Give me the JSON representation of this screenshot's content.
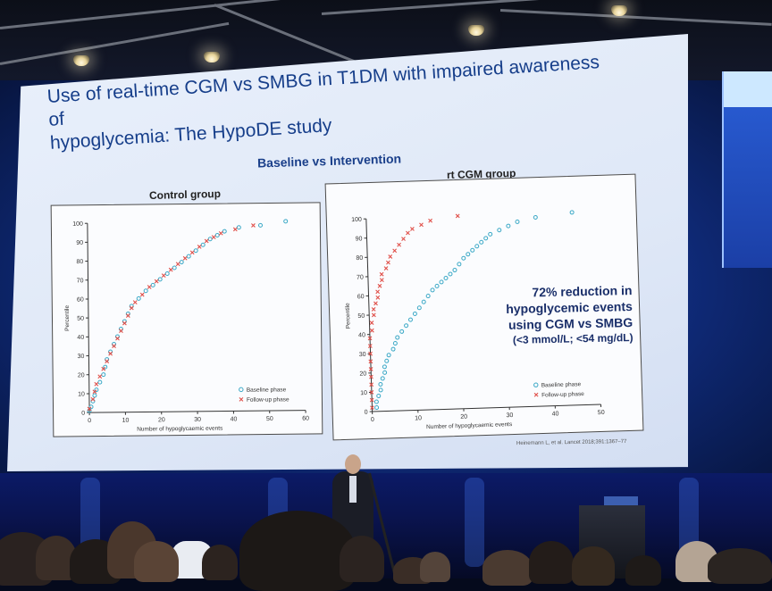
{
  "slide": {
    "title_line1": "Use of real-time CGM vs SMBG in T1DM with impaired awareness of",
    "title_line2": "hypoglycemia: The HypoDE study",
    "subheading": "Baseline vs Intervention",
    "callout_line1": "72% reduction in",
    "callout_line2": "hypoglycemic events",
    "callout_line3": "using CGM vs SMBG",
    "callout_line4": "(<3 mmol/L; <54 mg/dL)",
    "citation": "Heinemann L, et al. Lancet 2018;391:1367–77"
  },
  "colors": {
    "baseline": "#3aa8c6",
    "followup": "#e0504a",
    "title": "#163e8a"
  },
  "chart_data": [
    {
      "type": "scatter",
      "title": "Control group",
      "xlabel": "Number of hypoglycaemic events",
      "ylabel": "Percentile",
      "xlim": [
        0,
        60
      ],
      "ylim": [
        0,
        100
      ],
      "xticks": [
        "0",
        "10",
        "20",
        "30",
        "40",
        "50",
        "60"
      ],
      "yticks": [
        "0",
        "10",
        "20",
        "30",
        "40",
        "50",
        "60",
        "70",
        "80",
        "90",
        "100"
      ],
      "legend": [
        "Baseline phase",
        "Follow-up phase"
      ],
      "legend_position": "bottom-right",
      "series": [
        {
          "name": "Baseline phase",
          "marker": "circle",
          "points": [
            [
              0,
              1
            ],
            [
              0.5,
              3
            ],
            [
              1,
              6
            ],
            [
              1.5,
              9
            ],
            [
              2,
              12
            ],
            [
              3,
              16
            ],
            [
              4,
              20
            ],
            [
              4.5,
              24
            ],
            [
              5,
              28
            ],
            [
              6,
              32
            ],
            [
              7,
              36
            ],
            [
              8,
              40
            ],
            [
              9,
              44
            ],
            [
              10,
              48
            ],
            [
              11,
              52
            ],
            [
              12,
              56
            ],
            [
              14,
              60
            ],
            [
              16,
              64
            ],
            [
              18,
              67
            ],
            [
              20,
              70
            ],
            [
              22,
              73
            ],
            [
              24,
              76
            ],
            [
              26,
              79
            ],
            [
              28,
              82
            ],
            [
              30,
              85
            ],
            [
              32,
              88
            ],
            [
              34,
              91
            ],
            [
              36,
              93
            ],
            [
              38,
              95
            ],
            [
              42,
              97
            ],
            [
              48,
              98
            ],
            [
              55,
              100
            ]
          ]
        },
        {
          "name": "Follow-up phase",
          "marker": "cross",
          "points": [
            [
              0,
              2
            ],
            [
              1,
              7
            ],
            [
              1.5,
              11
            ],
            [
              2,
              15
            ],
            [
              3,
              19
            ],
            [
              4,
              23
            ],
            [
              5,
              27
            ],
            [
              6,
              31
            ],
            [
              7,
              35
            ],
            [
              8,
              39
            ],
            [
              9,
              43
            ],
            [
              10,
              47
            ],
            [
              11,
              51
            ],
            [
              12,
              55
            ],
            [
              13,
              58
            ],
            [
              15,
              62
            ],
            [
              17,
              66
            ],
            [
              19,
              69
            ],
            [
              21,
              72
            ],
            [
              23,
              75
            ],
            [
              25,
              78
            ],
            [
              27,
              81
            ],
            [
              29,
              84
            ],
            [
              31,
              87
            ],
            [
              33,
              90
            ],
            [
              35,
              92
            ],
            [
              37,
              94
            ],
            [
              41,
              96
            ],
            [
              46,
              98
            ]
          ]
        }
      ]
    },
    {
      "type": "scatter",
      "title": "rt CGM group",
      "xlabel": "Number of hypoglycaemic events",
      "ylabel": "Percentile",
      "xlim": [
        0,
        50
      ],
      "ylim": [
        0,
        100
      ],
      "xticks": [
        "0",
        "10",
        "20",
        "30",
        "40",
        "50"
      ],
      "yticks": [
        "0",
        "10",
        "20",
        "30",
        "40",
        "50",
        "60",
        "70",
        "80",
        "90",
        "100"
      ],
      "legend": [
        "Baseline phase",
        "Follow-up phase"
      ],
      "legend_position": "bottom-right",
      "series": [
        {
          "name": "Baseline phase",
          "marker": "circle",
          "points": [
            [
              1,
              2
            ],
            [
              1,
              5
            ],
            [
              1.5,
              8
            ],
            [
              2,
              11
            ],
            [
              2,
              14
            ],
            [
              2.5,
              17
            ],
            [
              3,
              20
            ],
            [
              3,
              23
            ],
            [
              3.5,
              26
            ],
            [
              4,
              29
            ],
            [
              5,
              32
            ],
            [
              5.5,
              35
            ],
            [
              6,
              38
            ],
            [
              7,
              41
            ],
            [
              8,
              44
            ],
            [
              9,
              47
            ],
            [
              10,
              50
            ],
            [
              11,
              53
            ],
            [
              12,
              56
            ],
            [
              13,
              59
            ],
            [
              14,
              62
            ],
            [
              15,
              64
            ],
            [
              16,
              66
            ],
            [
              17,
              68
            ],
            [
              18,
              70
            ],
            [
              19,
              72
            ],
            [
              20,
              75
            ],
            [
              21,
              78
            ],
            [
              22,
              80
            ],
            [
              23,
              82
            ],
            [
              24,
              84
            ],
            [
              25,
              86
            ],
            [
              26,
              88
            ],
            [
              27,
              90
            ],
            [
              29,
              92
            ],
            [
              31,
              94
            ],
            [
              33,
              96
            ],
            [
              37,
              98
            ],
            [
              45,
              100
            ]
          ]
        },
        {
          "name": "Follow-up phase",
          "marker": "cross",
          "points": [
            [
              0,
              2
            ],
            [
              0,
              6
            ],
            [
              0,
              10
            ],
            [
              0,
              14
            ],
            [
              0,
              18
            ],
            [
              0,
              22
            ],
            [
              0,
              26
            ],
            [
              0,
              30
            ],
            [
              0,
              34
            ],
            [
              0,
              38
            ],
            [
              0.5,
              42
            ],
            [
              0.5,
              46
            ],
            [
              1,
              50
            ],
            [
              1,
              53
            ],
            [
              1.5,
              56
            ],
            [
              2,
              59
            ],
            [
              2,
              62
            ],
            [
              2.5,
              65
            ],
            [
              3,
              68
            ],
            [
              3,
              71
            ],
            [
              4,
              74
            ],
            [
              4.5,
              77
            ],
            [
              5,
              80
            ],
            [
              6,
              83
            ],
            [
              7,
              86
            ],
            [
              8,
              89
            ],
            [
              9,
              92
            ],
            [
              10,
              94
            ],
            [
              12,
              96
            ],
            [
              14,
              98
            ],
            [
              20,
              100
            ]
          ]
        }
      ]
    }
  ]
}
